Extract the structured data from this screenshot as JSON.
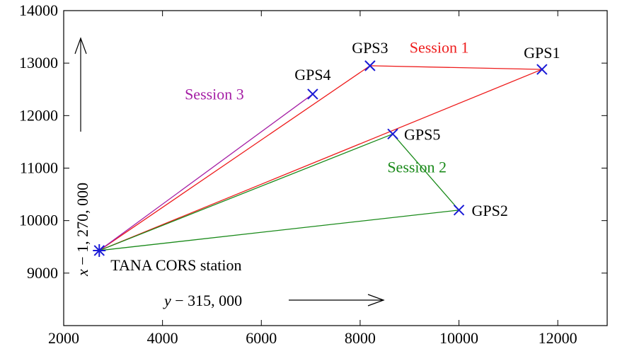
{
  "chart_data": {
    "type": "line",
    "xlim": [
      2000,
      13000
    ],
    "ylim": [
      8000,
      14000
    ],
    "x_ticks": [
      2000,
      4000,
      6000,
      8000,
      10000,
      12000
    ],
    "y_ticks": [
      9000,
      10000,
      11000,
      12000,
      13000,
      14000
    ],
    "x_tick_labels": [
      "2000",
      "4000",
      "6000",
      "8000",
      "10000",
      "12000"
    ],
    "y_tick_labels": [
      "9000",
      "10000",
      "11000",
      "12000",
      "13000",
      "14000"
    ],
    "xlabel_var": "y",
    "xlabel_rest": " − 315, 000",
    "ylabel_var": "x",
    "ylabel_rest": " − 1, 270, 000",
    "grid": false,
    "stations": [
      {
        "name": "TANA CORS station",
        "x": 2720,
        "y": 9430,
        "marker": "asterisk"
      },
      {
        "name": "GPS1",
        "x": 11680,
        "y": 12880,
        "marker": "x"
      },
      {
        "name": "GPS2",
        "x": 10000,
        "y": 10200,
        "marker": "x"
      },
      {
        "name": "GPS3",
        "x": 8200,
        "y": 12950,
        "marker": "x"
      },
      {
        "name": "GPS4",
        "x": 7040,
        "y": 12410,
        "marker": "x"
      },
      {
        "name": "GPS5",
        "x": 8660,
        "y": 11650,
        "marker": "x"
      }
    ],
    "sessions": [
      {
        "label": "Session 1",
        "color": "#ee1c1c",
        "segments": [
          [
            [
              2720,
              9430
            ],
            [
              11680,
              12880
            ]
          ],
          [
            [
              2720,
              9430
            ],
            [
              8200,
              12950
            ]
          ],
          [
            [
              8200,
              12950
            ],
            [
              11680,
              12880
            ]
          ]
        ]
      },
      {
        "label": "Session 2",
        "color": "#1a8a1a",
        "segments": [
          [
            [
              2720,
              9430
            ],
            [
              8660,
              11650
            ]
          ],
          [
            [
              2720,
              9430
            ],
            [
              10000,
              10200
            ]
          ],
          [
            [
              8660,
              11650
            ],
            [
              10000,
              10200
            ]
          ]
        ]
      },
      {
        "label": "Session 3",
        "color": "#a51fa5",
        "segments": [
          [
            [
              2720,
              9430
            ],
            [
              7040,
              12410
            ]
          ]
        ]
      }
    ],
    "marker_color": "#1a1ad6"
  }
}
